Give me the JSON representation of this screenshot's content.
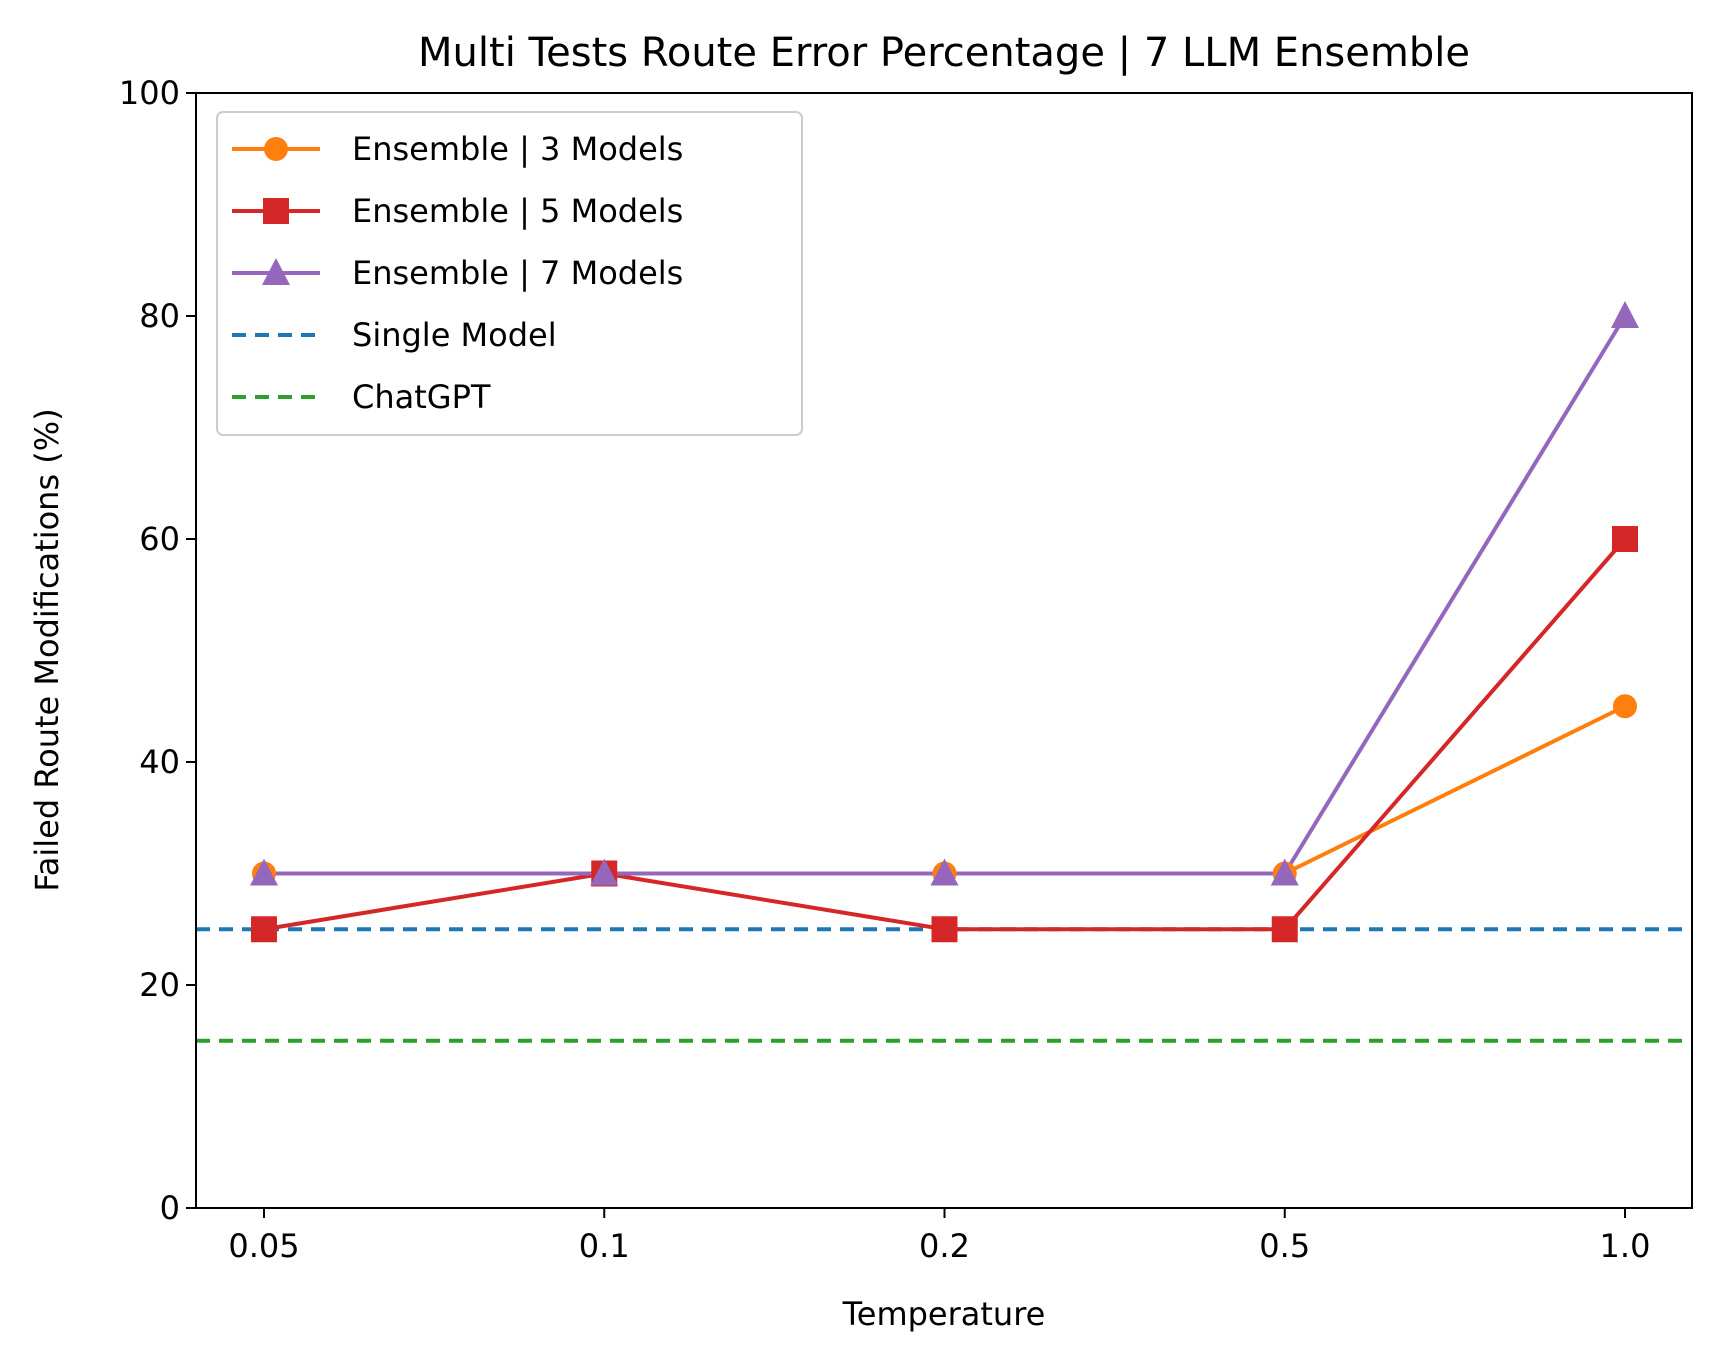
{
  "chart_data": {
    "type": "line",
    "title": "Multi Tests Route Error Percentage | 7 LLM Ensemble",
    "xlabel": "Temperature",
    "ylabel": "Failed Route Modifications (%)",
    "categories": [
      "0.05",
      "0.1",
      "0.2",
      "0.5",
      "1.0"
    ],
    "ylim": [
      0,
      100
    ],
    "yticks": [
      0,
      20,
      40,
      60,
      80,
      100
    ],
    "grid": false,
    "legend_position": "top-left",
    "series": [
      {
        "name": "Ensemble | 3 Models",
        "values": [
          30,
          30,
          30,
          30,
          45
        ],
        "color": "#ff7f0e",
        "marker": "circle",
        "style": "solid"
      },
      {
        "name": "Ensemble | 5 Models",
        "values": [
          25,
          30,
          25,
          25,
          60
        ],
        "color": "#d62728",
        "marker": "square",
        "style": "solid"
      },
      {
        "name": "Ensemble | 7 Models",
        "values": [
          30,
          30,
          30,
          30,
          80
        ],
        "color": "#9467bd",
        "marker": "triangle",
        "style": "solid"
      }
    ],
    "reference_lines": [
      {
        "name": "Single Model",
        "value": 25,
        "color": "#1f77b4",
        "style": "dashed"
      },
      {
        "name": "ChatGPT",
        "value": 15,
        "color": "#2ca02c",
        "style": "dashed"
      }
    ]
  }
}
